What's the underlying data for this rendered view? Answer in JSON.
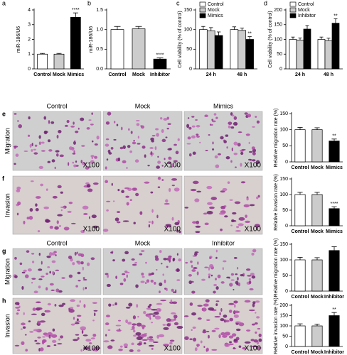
{
  "chart_data": [
    {
      "panel": "a",
      "type": "bar",
      "ylabel": "miR-186/U6",
      "categories": [
        "Control",
        "Mock",
        "Mimics"
      ],
      "values": [
        1.0,
        1.0,
        3.5
      ],
      "errors": [
        0.05,
        0.05,
        0.3
      ],
      "colors": [
        "#ffffff",
        "#cccccc",
        "#000000"
      ],
      "significance": [
        null,
        null,
        "****"
      ],
      "ylim": [
        0,
        4
      ],
      "yticks": [
        0,
        1,
        2,
        3,
        4
      ]
    },
    {
      "panel": "b",
      "type": "bar",
      "ylabel": "miR-186/U6",
      "categories": [
        "Control",
        "Mock",
        "Inhibitor"
      ],
      "values": [
        1.0,
        1.02,
        0.25
      ],
      "errors": [
        0.08,
        0.06,
        0.03
      ],
      "colors": [
        "#ffffff",
        "#cccccc",
        "#000000"
      ],
      "significance": [
        null,
        null,
        "****"
      ],
      "ylim": [
        0,
        1.5
      ],
      "yticks": [
        {
          "value": 0,
          "label": "0.0"
        },
        {
          "value": 0.5,
          "label": "0.5"
        },
        {
          "value": 1,
          "label": "1.0"
        },
        {
          "value": 1.5,
          "label": "1.5"
        }
      ]
    },
    {
      "panel": "c",
      "type": "grouped-bar",
      "ylabel": "Cell viability (% of control)",
      "categories": [
        "24 h",
        "48 h"
      ],
      "series": [
        {
          "name": "Control",
          "color": "#ffffff",
          "values": [
            100,
            100
          ],
          "errors": [
            8,
            7
          ],
          "significance": [
            null,
            null
          ]
        },
        {
          "name": "Mock",
          "color": "#cccccc",
          "values": [
            97,
            98
          ],
          "errors": [
            8,
            6
          ],
          "significance": [
            null,
            null
          ]
        },
        {
          "name": "Mimics",
          "color": "#000000",
          "values": [
            85,
            75
          ],
          "errors": [
            9,
            7
          ],
          "significance": [
            null,
            "**"
          ]
        }
      ],
      "ylim": [
        0,
        150
      ],
      "yticks": [
        0,
        50,
        100,
        150
      ]
    },
    {
      "panel": "d",
      "type": "grouped-bar",
      "ylabel": "Cell viability (% of control)",
      "categories": [
        "24 h",
        "48 h"
      ],
      "series": [
        {
          "name": "Control",
          "color": "#ffffff",
          "values": [
            100,
            100
          ],
          "errors": [
            8,
            8
          ],
          "significance": [
            null,
            null
          ]
        },
        {
          "name": "Mock",
          "color": "#cccccc",
          "values": [
            98,
            96
          ],
          "errors": [
            7,
            8
          ],
          "significance": [
            null,
            null
          ]
        },
        {
          "name": "Inhibitor",
          "color": "#000000",
          "values": [
            135,
            155
          ],
          "errors": [
            12,
            15
          ],
          "significance": [
            null,
            "**"
          ]
        }
      ],
      "ylim": [
        0,
        200
      ],
      "yticks": [
        0,
        50,
        100,
        150,
        200
      ]
    },
    {
      "type": "bar",
      "ylabel": "Relative migration rate (%)",
      "categories": [
        "Control",
        "Mock",
        "Mimics"
      ],
      "values": [
        100,
        100,
        65
      ],
      "errors": [
        7,
        6,
        6
      ],
      "colors": [
        "#ffffff",
        "#cccccc",
        "#000000"
      ],
      "significance": [
        null,
        null,
        "**"
      ],
      "ylim": [
        0,
        150
      ],
      "yticks": [
        0,
        50,
        100,
        150
      ]
    },
    {
      "type": "bar",
      "ylabel": "Relative invasion rate (%)",
      "categories": [
        "Control",
        "Mock",
        "Mimics"
      ],
      "values": [
        100,
        100,
        55
      ],
      "errors": [
        7,
        7,
        6
      ],
      "colors": [
        "#ffffff",
        "#cccccc",
        "#000000"
      ],
      "significance": [
        null,
        null,
        "****"
      ],
      "ylim": [
        0,
        150
      ],
      "yticks": [
        0,
        50,
        100,
        150
      ]
    },
    {
      "type": "bar",
      "ylabel": "Relative migration rate (%)",
      "categories": [
        "Control",
        "Mock",
        "Inhibitor"
      ],
      "values": [
        100,
        100,
        130
      ],
      "errors": [
        8,
        7,
        12
      ],
      "colors": [
        "#ffffff",
        "#cccccc",
        "#000000"
      ],
      "significance": [
        null,
        null,
        null
      ],
      "ylim": [
        0,
        150
      ],
      "yticks": [
        0,
        50,
        100,
        150
      ]
    },
    {
      "type": "bar",
      "ylabel": "Relative invasion rate (%)",
      "categories": [
        "Control",
        "Mock",
        "Inhibitor"
      ],
      "values": [
        100,
        100,
        150
      ],
      "errors": [
        10,
        9,
        15
      ],
      "colors": [
        "#ffffff",
        "#cccccc",
        "#000000"
      ],
      "significance": [
        null,
        null,
        "**"
      ],
      "ylim": [
        0,
        200
      ],
      "yticks": [
        0,
        50,
        100,
        150,
        200
      ]
    }
  ],
  "micrographs": [
    {
      "panel": "e",
      "row_label": "Migration",
      "columns": [
        "Control",
        "Mock",
        "Mimics"
      ],
      "magnification": [
        "X100",
        "X100",
        "X100"
      ]
    },
    {
      "panel": "f",
      "row_label": "Invasion",
      "magnification": [
        "X100",
        "X100",
        "X100"
      ]
    },
    {
      "panel": "g",
      "row_label": "Migration",
      "columns": [
        "Control",
        "Mock",
        "Inhibitor"
      ]
    },
    {
      "panel": "h",
      "row_label": "Invasion",
      "magnification": [
        "X100",
        "X100",
        "X100"
      ]
    }
  ]
}
